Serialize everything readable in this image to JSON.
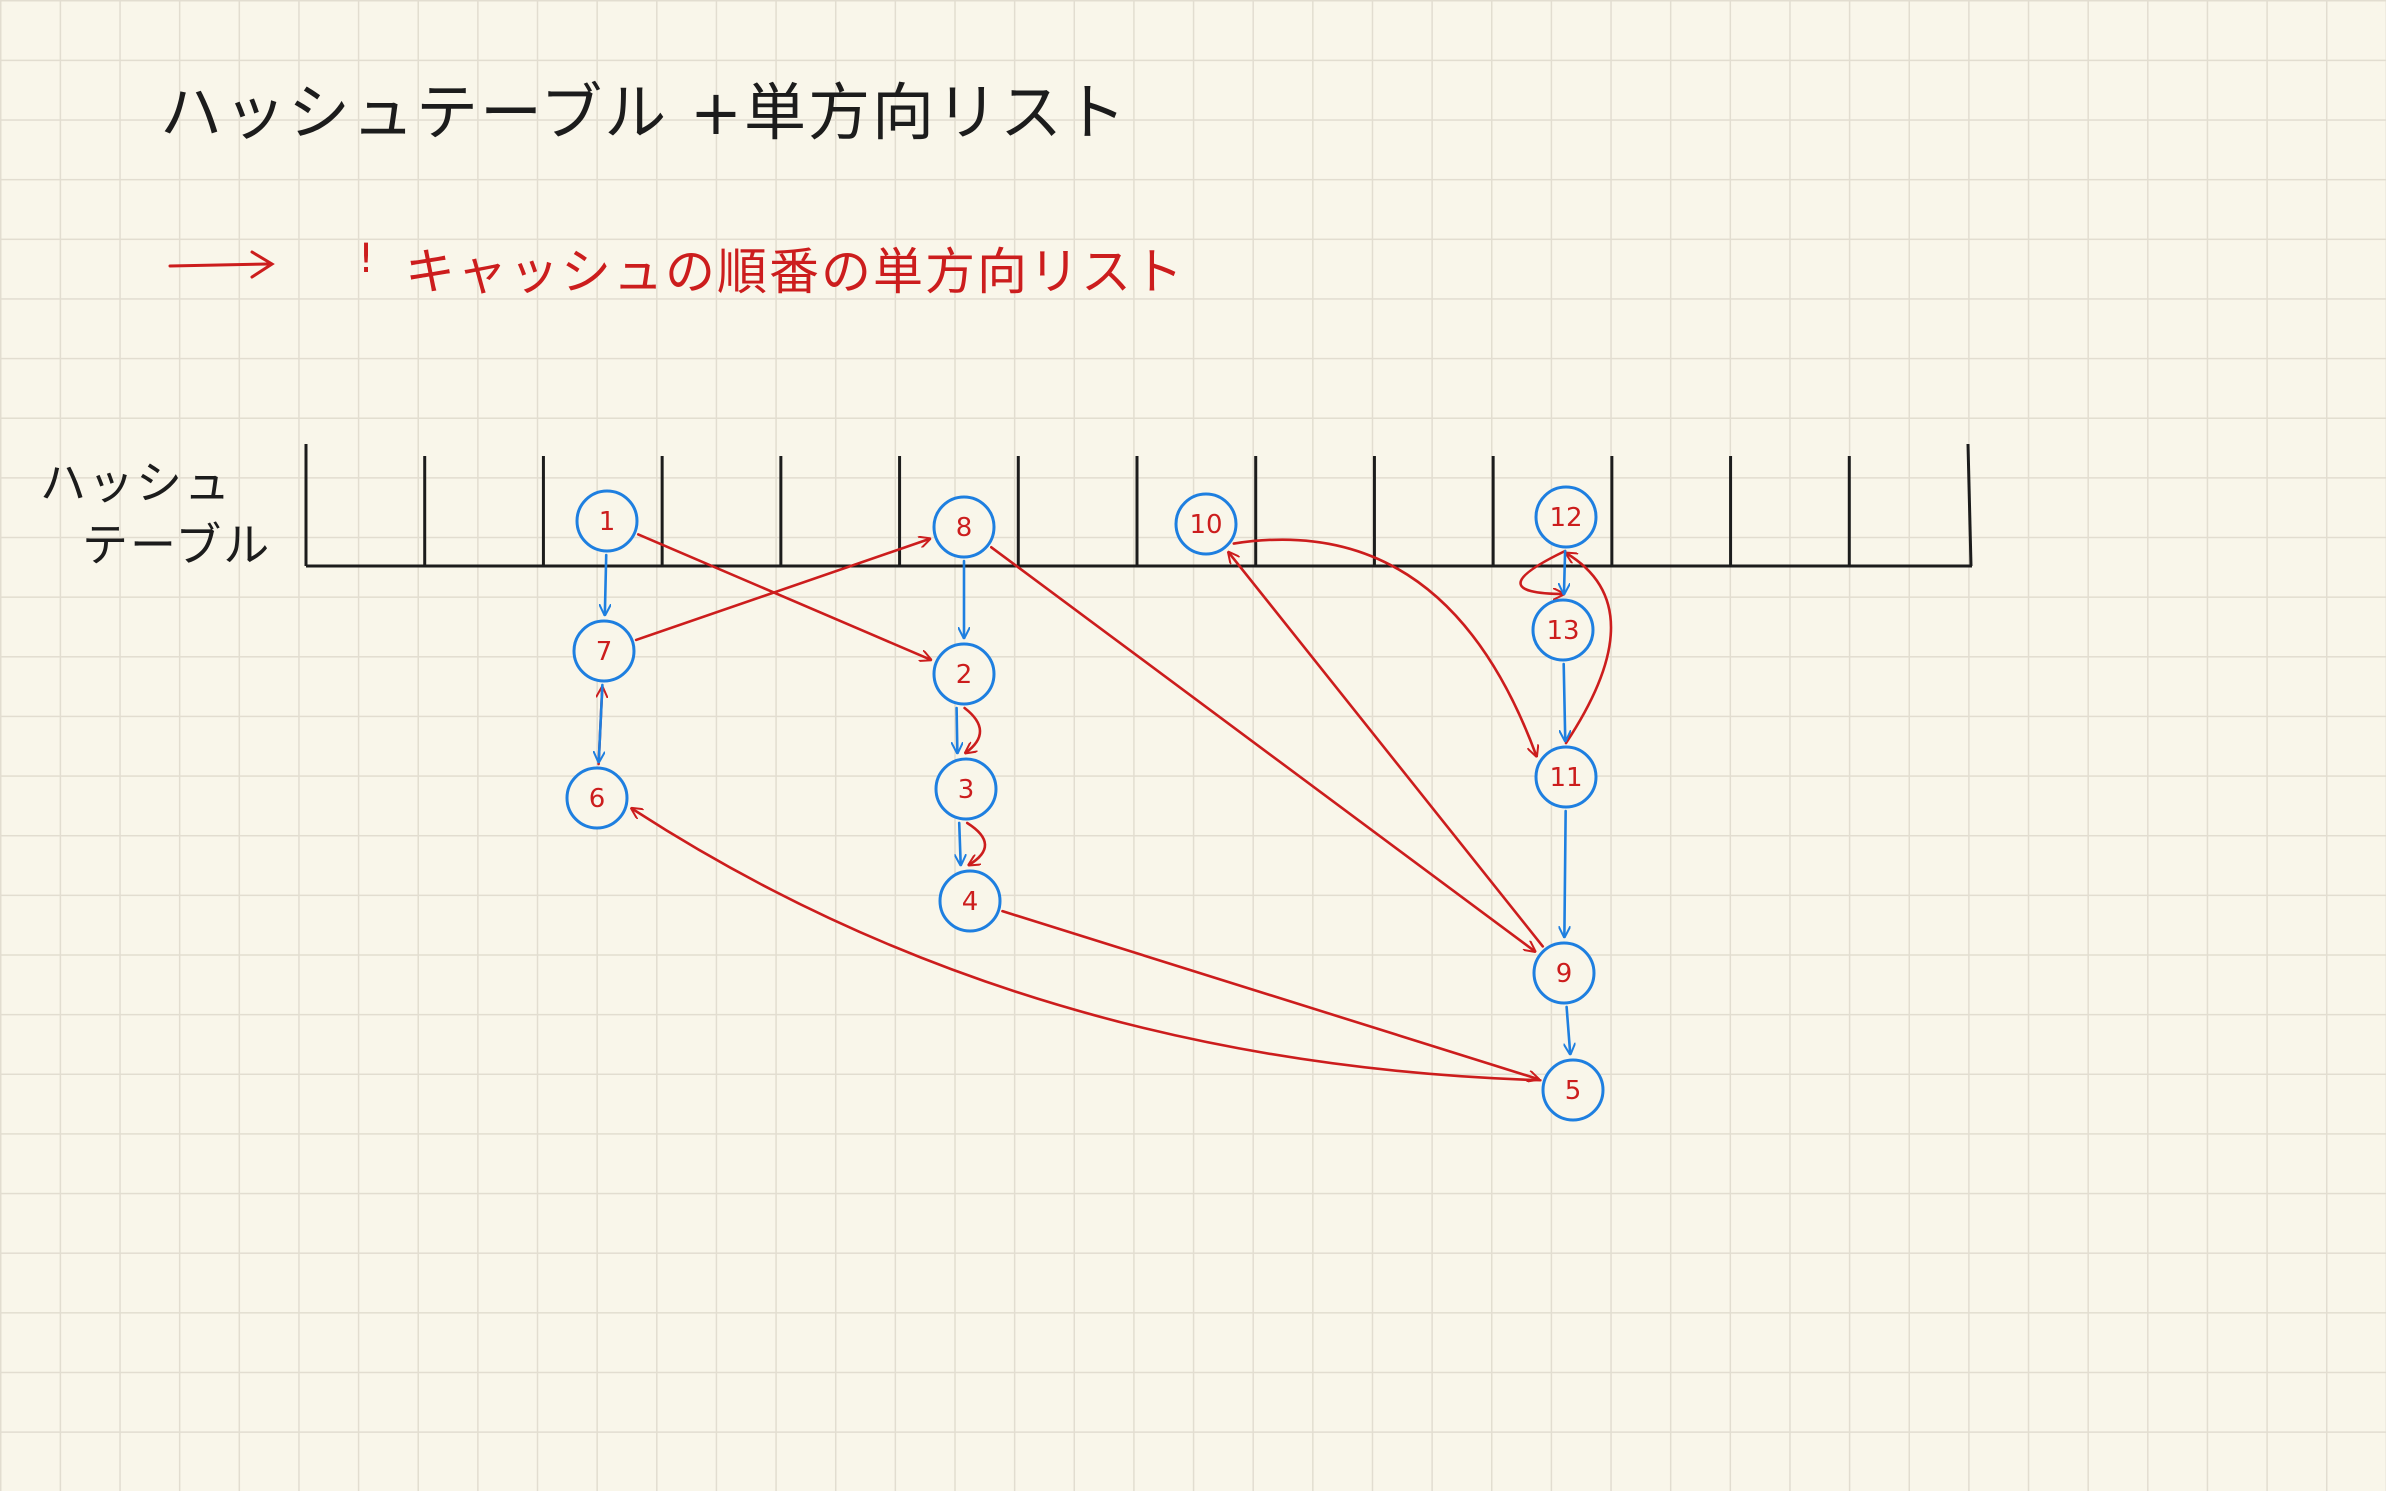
{
  "title": "ハッシュテーブル +単方向リスト",
  "legend": {
    "mark": "!",
    "text": "キャッシュの順番の単方向リスト"
  },
  "table_label": {
    "line1": "ハッシュ",
    "line2": "テーブル"
  },
  "colors": {
    "background": "#f9f6ea",
    "grid": "#e2ddd0",
    "ink": "#1c1c1c",
    "chain": "#1e7fe0",
    "cache_order": "#cc1d1d"
  },
  "diagram": {
    "bucket_count": 14,
    "nodes": [
      {
        "id": "1",
        "label": "1"
      },
      {
        "id": "7",
        "label": "7"
      },
      {
        "id": "6",
        "label": "6"
      },
      {
        "id": "8",
        "label": "8"
      },
      {
        "id": "2",
        "label": "2"
      },
      {
        "id": "3",
        "label": "3"
      },
      {
        "id": "4",
        "label": "4"
      },
      {
        "id": "10",
        "label": "10"
      },
      {
        "id": "12",
        "label": "12"
      },
      {
        "id": "13",
        "label": "13"
      },
      {
        "id": "11",
        "label": "11"
      },
      {
        "id": "9",
        "label": "9"
      },
      {
        "id": "5",
        "label": "5"
      }
    ],
    "chain_edges": [
      [
        "1",
        "7"
      ],
      [
        "7",
        "6"
      ],
      [
        "8",
        "2"
      ],
      [
        "2",
        "3"
      ],
      [
        "3",
        "4"
      ],
      [
        "12",
        "13"
      ],
      [
        "13",
        "11"
      ],
      [
        "11",
        "9"
      ],
      [
        "9",
        "5"
      ]
    ],
    "cache_order_edges": [
      [
        "1",
        "2"
      ],
      [
        "2",
        "3"
      ],
      [
        "3",
        "4"
      ],
      [
        "4",
        "5"
      ],
      [
        "5",
        "6"
      ],
      [
        "6",
        "7"
      ],
      [
        "7",
        "8"
      ],
      [
        "8",
        "9"
      ],
      [
        "9",
        "10"
      ],
      [
        "10",
        "11"
      ],
      [
        "11",
        "12"
      ],
      [
        "12",
        "13"
      ]
    ]
  }
}
